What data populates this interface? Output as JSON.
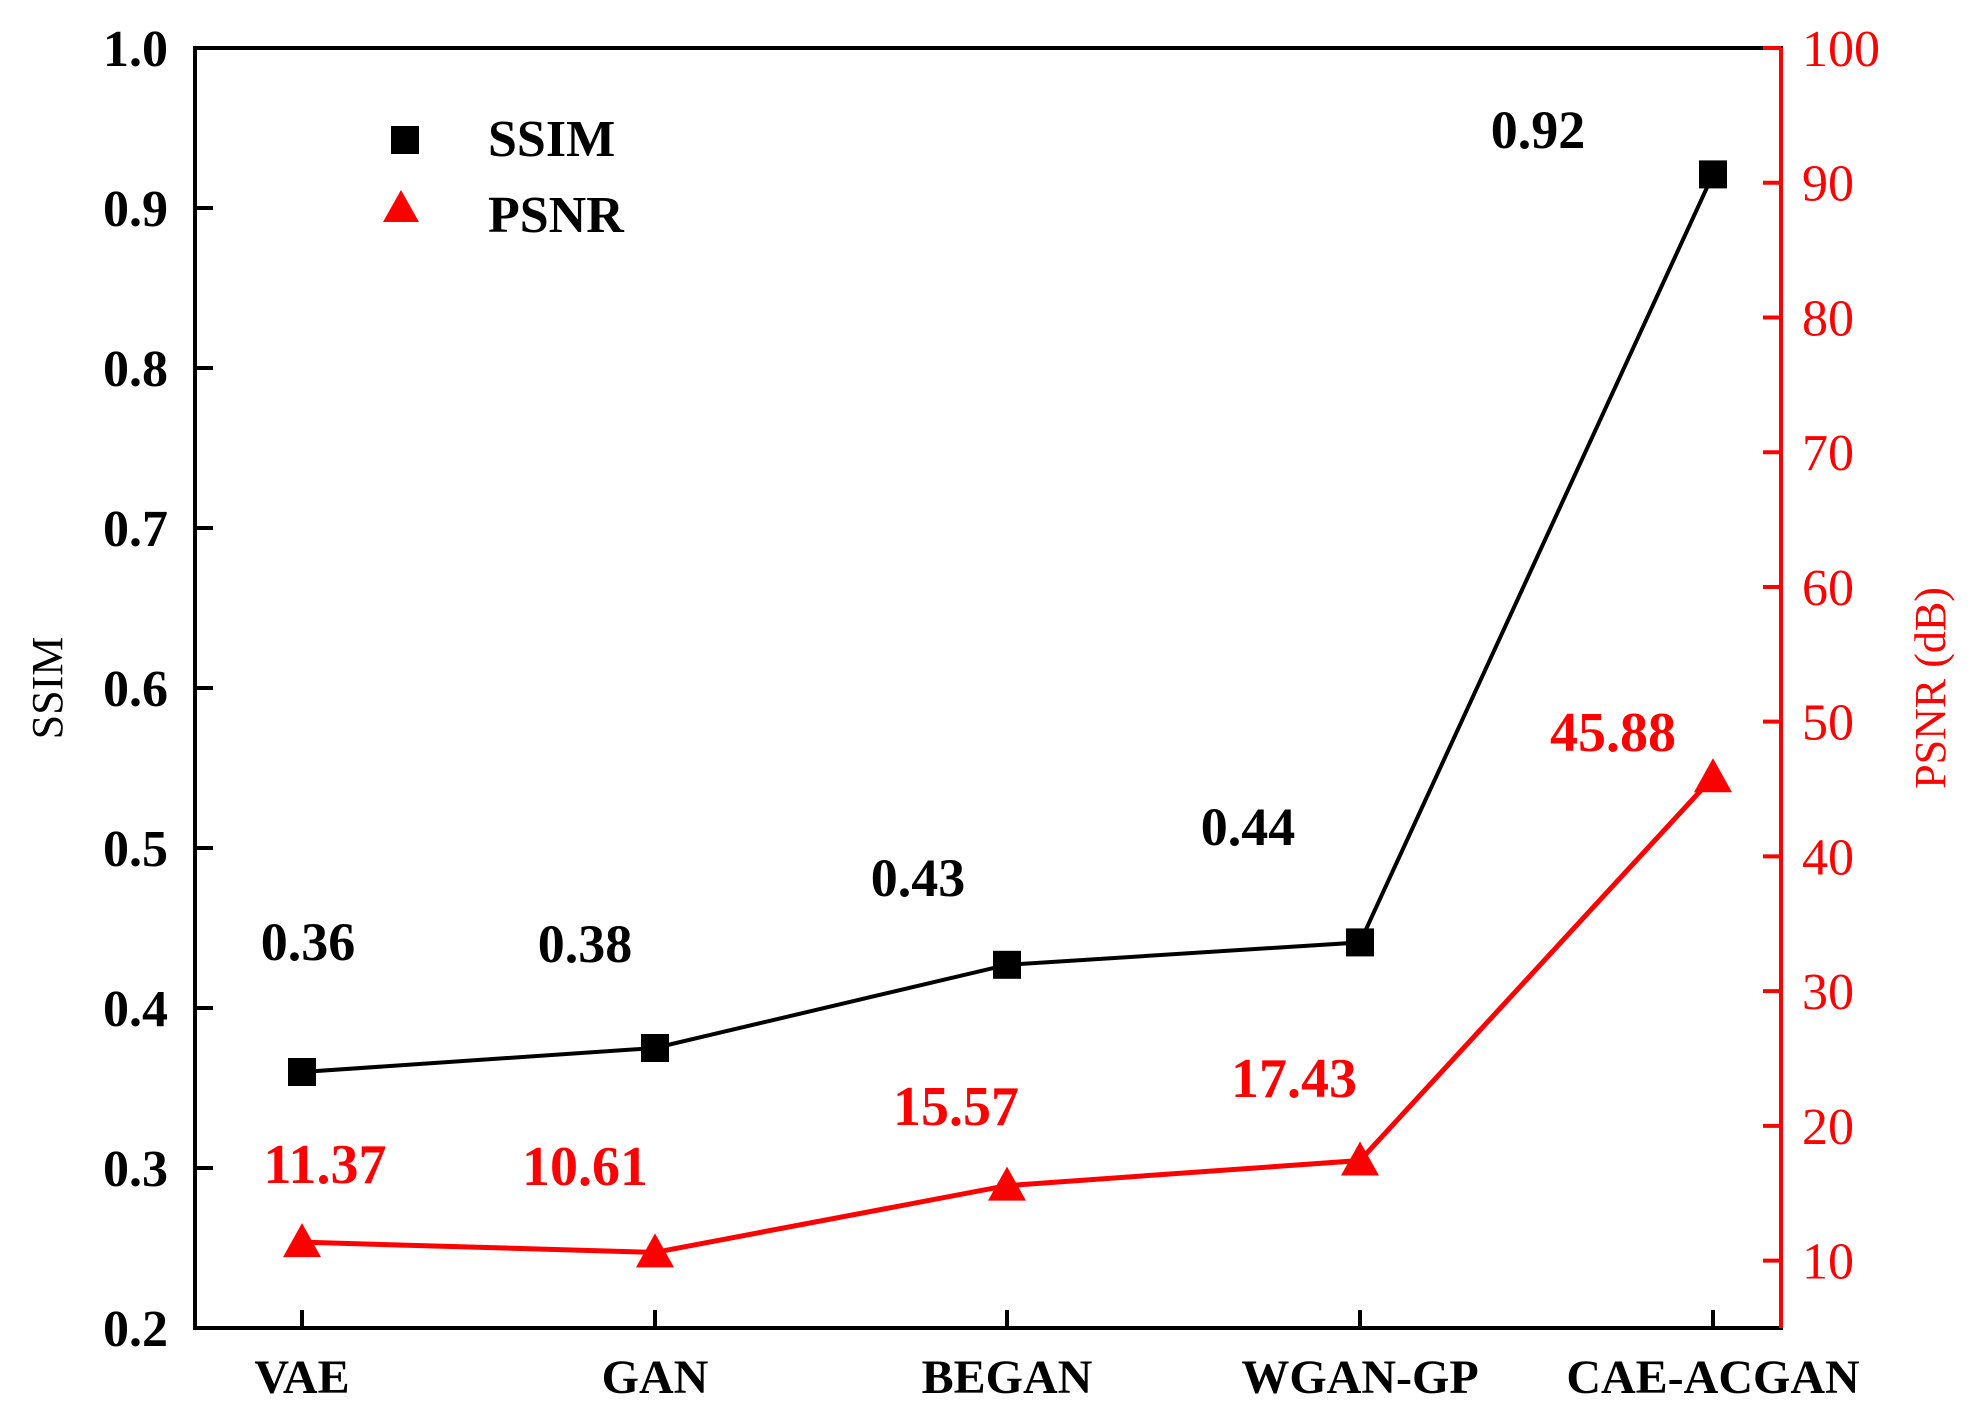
{
  "chart_data": {
    "type": "line",
    "categories": [
      "VAE",
      "GAN",
      "BEGAN",
      "WGAN-GP",
      "CAE-ACGAN"
    ],
    "series": [
      {
        "name": "SSIM",
        "axis": "left",
        "marker": "square",
        "color": "#000000",
        "values": [
          0.36,
          0.375,
          0.427,
          0.441,
          0.921
        ],
        "labels": [
          "0.36",
          "0.38",
          "0.43",
          "0.44",
          "0.92"
        ]
      },
      {
        "name": "PSNR",
        "axis": "right",
        "marker": "triangle",
        "color": "#ff0000",
        "values": [
          11.37,
          10.61,
          15.57,
          17.43,
          45.88
        ],
        "labels": [
          "11.37",
          "10.61",
          "15.57",
          "17.43",
          "45.88"
        ]
      }
    ],
    "y_left": {
      "label": "SSIM",
      "range": [
        0.2,
        1.0
      ],
      "ticks": [
        "0.2",
        "0.3",
        "0.4",
        "0.5",
        "0.6",
        "0.7",
        "0.8",
        "0.9",
        "1.0"
      ]
    },
    "y_right": {
      "label": "PSNR (dB)",
      "range": [
        5,
        100
      ],
      "ticks": [
        "10",
        "20",
        "30",
        "40",
        "50",
        "60",
        "70",
        "80",
        "90",
        "100"
      ]
    },
    "legend": {
      "position": "top-left",
      "entries": [
        "SSIM",
        "PSNR"
      ]
    },
    "grid": false
  }
}
